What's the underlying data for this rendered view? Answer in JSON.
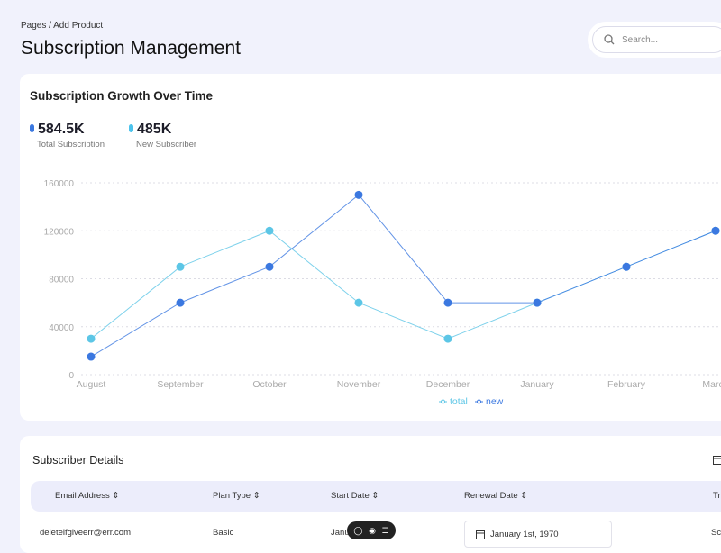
{
  "breadcrumb": "Pages / Add Product",
  "page_title": "Subscription Management",
  "search": {
    "placeholder": "Search..."
  },
  "growth_card": {
    "title": "Subscription Growth Over Time",
    "stats": [
      {
        "value": "584.5K",
        "label": "Total Subscription",
        "color": "#3b78e0"
      },
      {
        "value": "485K",
        "label": "New Subscriber",
        "color": "#4cc3ec"
      }
    ]
  },
  "chart_data": {
    "type": "line",
    "categories": [
      "August",
      "September",
      "October",
      "November",
      "December",
      "January",
      "February",
      "March"
    ],
    "ylim": [
      0,
      160000
    ],
    "yticks": [
      0,
      40000,
      80000,
      120000,
      160000
    ],
    "grid": true,
    "legend_position": "bottom",
    "series": [
      {
        "name": "total",
        "color": "#5cc6e6",
        "values": [
          30000,
          90000,
          120000,
          60000,
          30000,
          60000,
          90000,
          120000
        ]
      },
      {
        "name": "new",
        "color": "#3b78e0",
        "values": [
          15000,
          60000,
          90000,
          150000,
          60000,
          60000,
          90000,
          120000
        ]
      }
    ]
  },
  "details": {
    "title": "Subscriber Details",
    "columns": [
      "Email Address",
      "Plan Type",
      "Start Date",
      "Renewal Date",
      "Tr"
    ],
    "rows": [
      {
        "email": "deleteifgiveerr@err.com",
        "plan": "Basic",
        "start": "Janu",
        "renewal": "January 1st, 1970",
        "extra": "Sc"
      }
    ]
  }
}
